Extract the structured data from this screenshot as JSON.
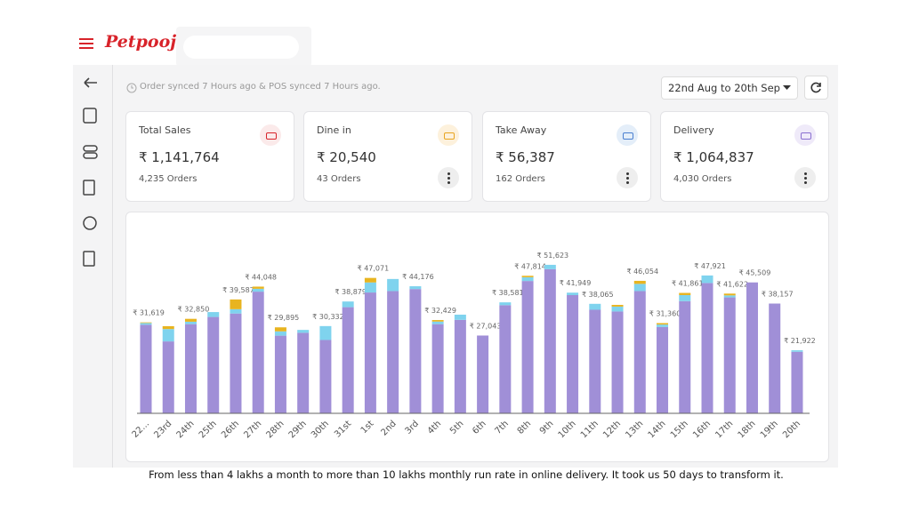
{
  "header": {
    "logo": "Petpooja"
  },
  "toolbar": {
    "sync_status": "Order synced 7 Hours ago & POS synced 7 Hours ago.",
    "date_range": "22nd Aug to 20th Sep"
  },
  "cards": [
    {
      "title": "Total Sales",
      "amount": "₹ 1,141,764",
      "orders": "4,235 Orders"
    },
    {
      "title": "Dine in",
      "amount": "₹ 20,540",
      "orders": "43 Orders"
    },
    {
      "title": "Take Away",
      "amount": "₹ 56,387",
      "orders": "162 Orders"
    },
    {
      "title": "Delivery",
      "amount": "₹ 1,064,837",
      "orders": "4,030 Orders"
    }
  ],
  "chart_data": {
    "type": "stacked_bar",
    "categories": [
      "22...",
      "23rd",
      "24th",
      "25th",
      "26th",
      "27th",
      "28th",
      "29th",
      "30th",
      "31st",
      "1st",
      "2nd",
      "3rd",
      "4th",
      "5th",
      "6th",
      "7th",
      "8th",
      "9th",
      "10th",
      "11th",
      "12th",
      "13th",
      "14th",
      "15th",
      "16th",
      "17th",
      "18th",
      "19th",
      "20th"
    ],
    "series": [
      {
        "color": "#a08fd7",
        "values": [
          30800,
          25000,
          31000,
          33500,
          34700,
          42300,
          27000,
          28000,
          25500,
          36900,
          42000,
          42500,
          43200,
          31000,
          32500,
          27043,
          37600,
          46000,
          50100,
          41100,
          36000,
          35400,
          42500,
          30000,
          39000,
          45300,
          40300,
          45509,
          38157,
          21400
        ]
      },
      {
        "color": "#7fd3ee",
        "values": [
          600,
          4300,
          850,
          1700,
          1500,
          1000,
          1500,
          1000,
          4832,
          1979,
          3500,
          4200,
          976,
          900,
          1800,
          0,
          981,
          1314,
          1523,
          849,
          2065,
          1700,
          2500,
          860,
          2100,
          2621,
          700,
          0,
          0,
          522
        ]
      },
      {
        "color": "#e8b420",
        "values": [
          219,
          1000,
          1000,
          0,
          3387,
          748,
          1395,
          0,
          0,
          0,
          1571,
          0,
          0,
          529,
          0,
          0,
          0,
          500,
          0,
          0,
          0,
          600,
          1054,
          500,
          761,
          0,
          622,
          0,
          0,
          0
        ]
      }
    ],
    "totals": [
      31619,
      null,
      32850,
      null,
      39587,
      44048,
      29895,
      null,
      30332,
      38879,
      47071,
      null,
      44176,
      32429,
      null,
      27043,
      38581,
      47814,
      51623,
      41949,
      38065,
      null,
      46054,
      31360,
      41861,
      47921,
      41622,
      45509,
      38157,
      21922
    ],
    "value_labels": [
      "₹ 31,619",
      null,
      "₹ 32,850",
      null,
      "₹ 39,587",
      "₹ 44,048",
      "₹ 29,895",
      null,
      "₹ 30,332",
      "₹ 38,879",
      "₹ 47,071",
      null,
      "₹ 44,176",
      "₹ 32,429",
      null,
      "₹ 27,043",
      "₹ 38,581",
      "₹ 47,814",
      "₹ 51,623",
      "₹ 41,949",
      "₹ 38,065",
      null,
      "₹ 46,054",
      "₹ 31,360",
      "₹ 41,861",
      "₹ 47,921",
      "₹ 41,622",
      "₹ 45,509",
      "₹ 38,157",
      "₹ 21,922"
    ],
    "ylim": [
      0,
      55000
    ]
  },
  "caption": "From less than 4 lakhs a month to more than 10 lakhs monthly run rate in online delivery. It took us 50 days to transform it."
}
